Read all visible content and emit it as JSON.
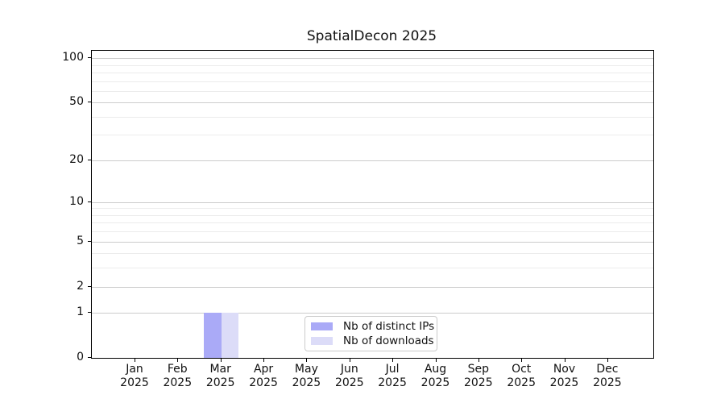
{
  "chart_data": {
    "type": "bar",
    "title": "SpatialDecon 2025",
    "x_categories": [
      "Jan 2025",
      "Feb 2025",
      "Mar 2025",
      "Apr 2025",
      "May 2025",
      "Jun 2025",
      "Jul 2025",
      "Aug 2025",
      "Sep 2025",
      "Oct 2025",
      "Nov 2025",
      "Dec 2025"
    ],
    "series": [
      {
        "name": "Nb of distinct IPs",
        "color": "#aaaaf7",
        "values": [
          0,
          0,
          1,
          0,
          0,
          0,
          0,
          0,
          0,
          0,
          0,
          0
        ]
      },
      {
        "name": "Nb of downloads",
        "color": "#dcdcf8",
        "values": [
          0,
          0,
          1,
          0,
          0,
          0,
          0,
          0,
          0,
          0,
          0,
          0
        ]
      }
    ],
    "y_scale": "log1p",
    "y_major_ticks": [
      0,
      1,
      2,
      5,
      10,
      20,
      50,
      100
    ],
    "y_minor_gridlines": [
      3,
      4,
      6,
      7,
      8,
      9,
      30,
      40,
      60,
      70,
      80,
      90
    ],
    "ylim": [
      0,
      112
    ],
    "xlabel": "",
    "ylabel": "",
    "grid": true,
    "legend_position": "lower center",
    "colors": {
      "grid_major": "#cccccc",
      "grid_minor": "#ececec",
      "axis": "#000000",
      "background": "#ffffff"
    }
  }
}
